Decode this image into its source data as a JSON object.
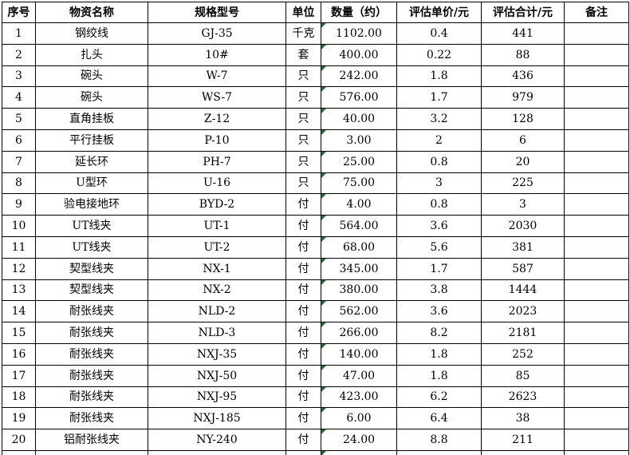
{
  "colors": {
    "border": "#000000",
    "quantity_flag": "#1c7430",
    "background": "#ffffff"
  },
  "table": {
    "headers": [
      "序号",
      "物资名称",
      "规格型号",
      "单位",
      "数量（约）",
      "评估单价/元",
      "评估合计/元",
      "备注"
    ],
    "rows": [
      {
        "seq": "1",
        "name": "钢绞线",
        "model": "GJ-35",
        "unit": "千克",
        "qty": "1102.00",
        "price": "0.4",
        "total": "441",
        "note": ""
      },
      {
        "seq": "2",
        "name": "扎头",
        "model": "10#",
        "unit": "套",
        "qty": "400.00",
        "price": "0.22",
        "total": "88",
        "note": ""
      },
      {
        "seq": "3",
        "name": "碗头",
        "model": "W-7",
        "unit": "只",
        "qty": "242.00",
        "price": "1.8",
        "total": "436",
        "note": ""
      },
      {
        "seq": "4",
        "name": "碗头",
        "model": "WS-7",
        "unit": "只",
        "qty": "576.00",
        "price": "1.7",
        "total": "979",
        "note": ""
      },
      {
        "seq": "5",
        "name": "直角挂板",
        "model": "Z-12",
        "unit": "只",
        "qty": "40.00",
        "price": "3.2",
        "total": "128",
        "note": ""
      },
      {
        "seq": "6",
        "name": "平行挂板",
        "model": "P-10",
        "unit": "只",
        "qty": "3.00",
        "price": "2",
        "total": "6",
        "note": ""
      },
      {
        "seq": "7",
        "name": "延长环",
        "model": "PH-7",
        "unit": "只",
        "qty": "25.00",
        "price": "0.8",
        "total": "20",
        "note": ""
      },
      {
        "seq": "8",
        "name": "U型环",
        "model": "U-16",
        "unit": "只",
        "qty": "75.00",
        "price": "3",
        "total": "225",
        "note": ""
      },
      {
        "seq": "9",
        "name": "验电接地环",
        "model": "BYD-2",
        "unit": "付",
        "qty": "4.00",
        "price": "0.8",
        "total": "3",
        "note": ""
      },
      {
        "seq": "10",
        "name": "UT线夹",
        "model": "UT-1",
        "unit": "付",
        "qty": "564.00",
        "price": "3.6",
        "total": "2030",
        "note": ""
      },
      {
        "seq": "11",
        "name": "UT线夹",
        "model": "UT-2",
        "unit": "付",
        "qty": "68.00",
        "price": "5.6",
        "total": "381",
        "note": ""
      },
      {
        "seq": "12",
        "name": "契型线夹",
        "model": "NX-1",
        "unit": "付",
        "qty": "345.00",
        "price": "1.7",
        "total": "587",
        "note": ""
      },
      {
        "seq": "13",
        "name": "契型线夹",
        "model": "NX-2",
        "unit": "付",
        "qty": "380.00",
        "price": "3.8",
        "total": "1444",
        "note": ""
      },
      {
        "seq": "14",
        "name": "耐张线夹",
        "model": "NLD-2",
        "unit": "付",
        "qty": "562.00",
        "price": "3.6",
        "total": "2023",
        "note": ""
      },
      {
        "seq": "15",
        "name": "耐张线夹",
        "model": "NLD-3",
        "unit": "付",
        "qty": "266.00",
        "price": "8.2",
        "total": "2181",
        "note": ""
      },
      {
        "seq": "16",
        "name": "耐张线夹",
        "model": "NXJ-35",
        "unit": "付",
        "qty": "140.00",
        "price": "1.8",
        "total": "252",
        "note": ""
      },
      {
        "seq": "17",
        "name": "耐张线夹",
        "model": "NXJ-50",
        "unit": "付",
        "qty": "47.00",
        "price": "1.8",
        "total": "85",
        "note": ""
      },
      {
        "seq": "18",
        "name": "耐张线夹",
        "model": "NXJ-95",
        "unit": "付",
        "qty": "423.00",
        "price": "6.2",
        "total": "2623",
        "note": ""
      },
      {
        "seq": "19",
        "name": "耐张线夹",
        "model": "NXJ-185",
        "unit": "付",
        "qty": "6.00",
        "price": "6.4",
        "total": "38",
        "note": ""
      },
      {
        "seq": "20",
        "name": "铝耐张线夹",
        "model": "NY-240",
        "unit": "付",
        "qty": "24.00",
        "price": "8.8",
        "total": "211",
        "note": ""
      }
    ]
  }
}
